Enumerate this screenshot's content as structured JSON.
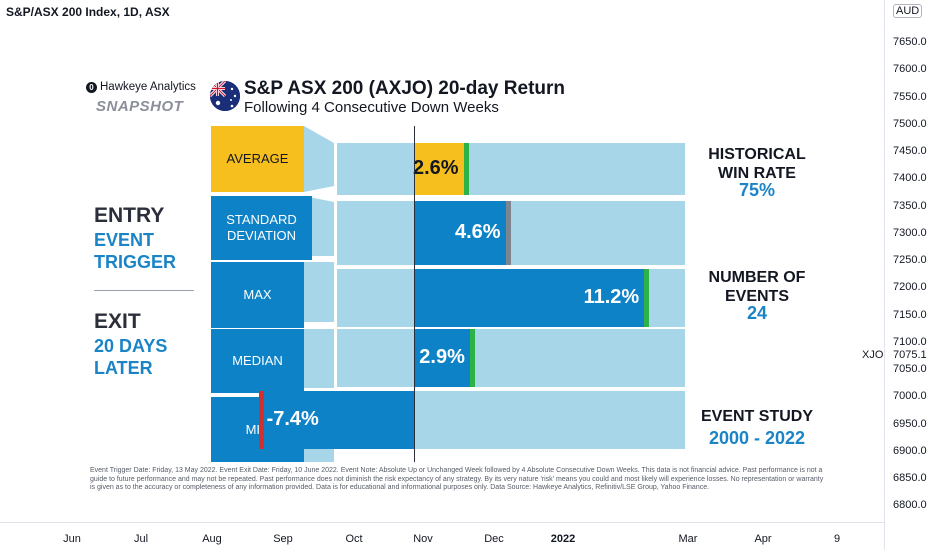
{
  "symbol": "S&P/ASX 200 Index, 1D, ASX",
  "currency": "AUD",
  "price_axis": [
    "7650.0",
    "7600.0",
    "7550.0",
    "7500.0",
    "7450.0",
    "7400.0",
    "7350.0",
    "7300.0",
    "7250.0",
    "7200.0",
    "7150.0",
    "7100.0",
    "7050.0",
    "7000.0",
    "6950.0",
    "6900.0",
    "6850.0",
    "6800.0"
  ],
  "last_price_label": "XJO",
  "last_price": "7075.1",
  "time_axis": [
    {
      "label": "Jun",
      "bold": false
    },
    {
      "label": "Jul",
      "bold": false
    },
    {
      "label": "Aug",
      "bold": false
    },
    {
      "label": "Sep",
      "bold": false
    },
    {
      "label": "Oct",
      "bold": false
    },
    {
      "label": "Nov",
      "bold": false
    },
    {
      "label": "Dec",
      "bold": false
    },
    {
      "label": "2022",
      "bold": true
    },
    {
      "label": "Mar",
      "bold": false
    },
    {
      "label": "Apr",
      "bold": false
    },
    {
      "label": "9",
      "bold": false
    }
  ],
  "brand": {
    "logo": "0",
    "name": "Hawkeye Analytics",
    "tag": "SNAPSHOT"
  },
  "header": {
    "title": "S&P ASX 200 (AXJO) 20-day Return",
    "subtitle": "Following 4 Consecutive Down Weeks"
  },
  "entry": {
    "heading": "ENTRY",
    "line1": "EVENT",
    "line2": "TRIGGER"
  },
  "exit": {
    "heading": "EXIT",
    "line1": "20 DAYS",
    "line2": "LATER"
  },
  "stats": [
    {
      "label1": "HISTORICAL",
      "label2": "WIN RATE",
      "value": "75%"
    },
    {
      "label1": "NUMBER OF",
      "label2": "EVENTS",
      "value": "24"
    },
    {
      "label1": "EVENT STUDY",
      "label2": "",
      "value": "2000 - 2022"
    }
  ],
  "disclaimer": "Event Trigger Date: Friday, 13 May 2022. Event Exit Date: Friday, 10 June 2022. Event Note: Absolute Up or Unchanged Week followed by 4 Absolute Consecutive Down Weeks. This data is not financial advice. Past performance is not a guide to future performance and may not be repeated. Past performance does not diminish the risk expectancy of any strategy. By its very nature 'risk' means you could and most likely will experience losses. No representation or warranty is given as to the accuracy or completeness of any information provided. Data is for educational and informational purposes only. Data Source: Hawkeye Analytics, Refinitiv/LSE Group, Yahoo Finance.",
  "colors": {
    "avg": "#f6bf1e",
    "bar": "#0d82c6",
    "track": "#a7d6e8",
    "positive_stub": "#2db24a",
    "neutral_stub": "#7d8590",
    "negative_stub": "#d32f2f",
    "accent_text": "#1b84c6"
  },
  "chart_data": {
    "type": "bar",
    "orientation": "horizontal",
    "categories": [
      "AVERAGE",
      "STANDARD DEVIATION",
      "MAX",
      "MEDIAN",
      "MIN"
    ],
    "values": [
      2.6,
      4.6,
      11.2,
      2.9,
      -7.4
    ],
    "value_labels": [
      "2.6%",
      "4.6%",
      "11.2%",
      "2.9%",
      "-7.4%"
    ],
    "stub_colors": [
      "positive_stub",
      "neutral_stub",
      "positive_stub",
      "positive_stub",
      "negative_stub"
    ],
    "title": "S&P ASX 200 (AXJO) 20-day Return",
    "subtitle": "Following 4 Consecutive Down Weeks",
    "unit": "%",
    "xlim": [
      -8.2,
      13.0
    ]
  }
}
